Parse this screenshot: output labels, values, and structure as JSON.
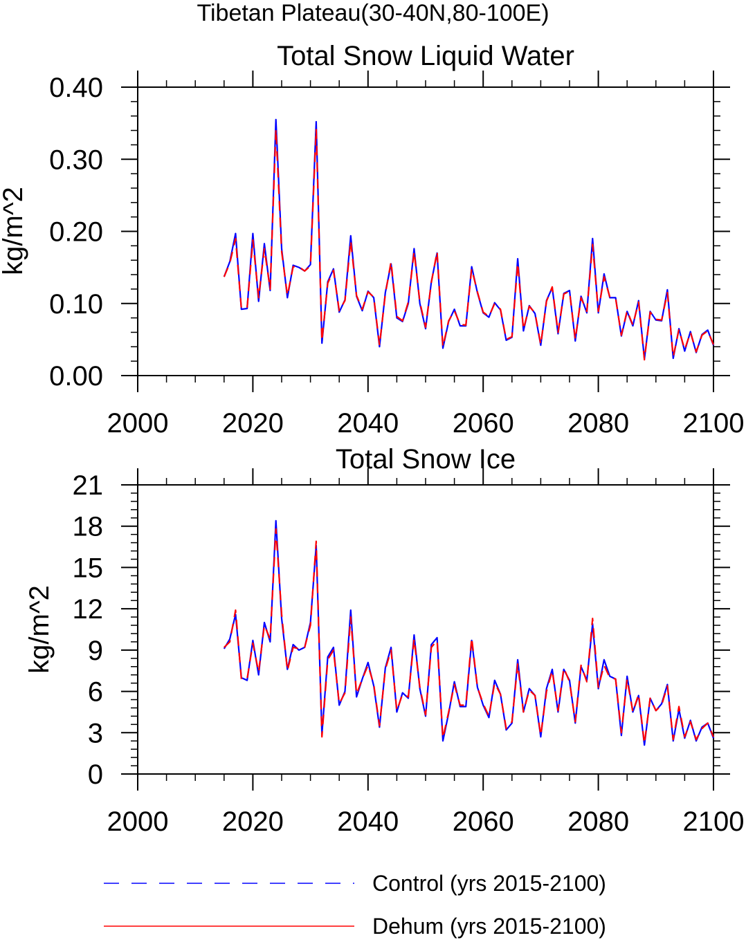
{
  "suptitle": "Tibetan Plateau(30-40N,80-100E)",
  "legend": {
    "control_label": "Control (yrs 2015-2100)",
    "dehum_label": "Dehum (yrs 2015-2100)"
  },
  "colors": {
    "control": "#0000ff",
    "dehum": "#ff0000",
    "axis": "#000000"
  },
  "chart_data": [
    {
      "type": "line",
      "title": "Total Snow Liquid Water",
      "xlabel": "",
      "ylabel": "kg/m^2",
      "xlim": [
        2000,
        2100
      ],
      "ylim": [
        0,
        0.4
      ],
      "xticks": [
        2000,
        2020,
        2040,
        2060,
        2080,
        2100
      ],
      "xtick_labels": [
        "2000",
        "2020",
        "2040",
        "2060",
        "2080",
        "2100"
      ],
      "yticks": [
        0,
        0.1,
        0.2,
        0.3,
        0.4
      ],
      "ytick_labels": [
        "0.00",
        "0.10",
        "0.20",
        "0.30",
        "0.40"
      ],
      "x": [
        2015,
        2016,
        2017,
        2018,
        2019,
        2020,
        2021,
        2022,
        2023,
        2024,
        2025,
        2026,
        2027,
        2028,
        2029,
        2030,
        2031,
        2032,
        2033,
        2034,
        2035,
        2036,
        2037,
        2038,
        2039,
        2040,
        2041,
        2042,
        2043,
        2044,
        2045,
        2046,
        2047,
        2048,
        2049,
        2050,
        2051,
        2052,
        2053,
        2054,
        2055,
        2056,
        2057,
        2058,
        2059,
        2060,
        2061,
        2062,
        2063,
        2064,
        2065,
        2066,
        2067,
        2068,
        2069,
        2070,
        2071,
        2072,
        2073,
        2074,
        2075,
        2076,
        2077,
        2078,
        2079,
        2080,
        2081,
        2082,
        2083,
        2084,
        2085,
        2086,
        2087,
        2088,
        2089,
        2090,
        2091,
        2092,
        2093,
        2094,
        2095,
        2096,
        2097,
        2098,
        2099,
        2100
      ],
      "series": [
        {
          "name": "Control (yrs 2015-2100)",
          "values": [
            0.137,
            0.158,
            0.197,
            0.092,
            0.093,
            0.197,
            0.103,
            0.183,
            0.118,
            0.355,
            0.176,
            0.108,
            0.153,
            0.15,
            0.145,
            0.154,
            0.352,
            0.045,
            0.13,
            0.148,
            0.088,
            0.105,
            0.194,
            0.11,
            0.09,
            0.117,
            0.108,
            0.04,
            0.115,
            0.155,
            0.08,
            0.075,
            0.1,
            0.176,
            0.1,
            0.065,
            0.13,
            0.17,
            0.038,
            0.075,
            0.092,
            0.069,
            0.069,
            0.151,
            0.115,
            0.087,
            0.081,
            0.101,
            0.091,
            0.049,
            0.053,
            0.162,
            0.062,
            0.097,
            0.086,
            0.042,
            0.104,
            0.122,
            0.058,
            0.114,
            0.118,
            0.048,
            0.11,
            0.087,
            0.19,
            0.087,
            0.141,
            0.108,
            0.108,
            0.055,
            0.089,
            0.069,
            0.104,
            0.023,
            0.089,
            0.077,
            0.076,
            0.119,
            0.024,
            0.065,
            0.034,
            0.061,
            0.032,
            0.057,
            0.063,
            0.042
          ]
        },
        {
          "name": "Dehum (yrs 2015-2100)",
          "values": [
            0.137,
            0.156,
            0.19,
            0.093,
            0.094,
            0.188,
            0.108,
            0.176,
            0.12,
            0.342,
            0.172,
            0.111,
            0.151,
            0.151,
            0.145,
            0.152,
            0.342,
            0.048,
            0.128,
            0.146,
            0.09,
            0.104,
            0.187,
            0.111,
            0.092,
            0.116,
            0.109,
            0.042,
            0.113,
            0.158,
            0.082,
            0.076,
            0.102,
            0.172,
            0.102,
            0.067,
            0.129,
            0.172,
            0.04,
            0.076,
            0.09,
            0.071,
            0.07,
            0.148,
            0.116,
            0.088,
            0.082,
            0.1,
            0.092,
            0.05,
            0.054,
            0.156,
            0.064,
            0.096,
            0.087,
            0.043,
            0.103,
            0.123,
            0.06,
            0.113,
            0.117,
            0.05,
            0.108,
            0.089,
            0.182,
            0.089,
            0.137,
            0.109,
            0.107,
            0.056,
            0.09,
            0.07,
            0.102,
            0.022,
            0.088,
            0.078,
            0.077,
            0.115,
            0.026,
            0.064,
            0.036,
            0.06,
            0.033,
            0.056,
            0.062,
            0.043
          ]
        }
      ]
    },
    {
      "type": "line",
      "title": "Total Snow Ice",
      "xlabel": "",
      "ylabel": "kg/m^2",
      "xlim": [
        2000,
        2100
      ],
      "ylim": [
        0,
        21
      ],
      "xticks": [
        2000,
        2020,
        2040,
        2060,
        2080,
        2100
      ],
      "xtick_labels": [
        "2000",
        "2020",
        "2040",
        "2060",
        "2080",
        "2100"
      ],
      "yticks": [
        0,
        3,
        6,
        9,
        12,
        15,
        18,
        21
      ],
      "ytick_labels": [
        "0",
        "3",
        "6",
        "9",
        "12",
        "15",
        "18",
        "21"
      ],
      "x": [
        2015,
        2016,
        2017,
        2018,
        2019,
        2020,
        2021,
        2022,
        2023,
        2024,
        2025,
        2026,
        2027,
        2028,
        2029,
        2030,
        2031,
        2032,
        2033,
        2034,
        2035,
        2036,
        2037,
        2038,
        2039,
        2040,
        2041,
        2042,
        2043,
        2044,
        2045,
        2046,
        2047,
        2048,
        2049,
        2050,
        2051,
        2052,
        2053,
        2054,
        2055,
        2056,
        2057,
        2058,
        2059,
        2060,
        2061,
        2062,
        2063,
        2064,
        2065,
        2066,
        2067,
        2068,
        2069,
        2070,
        2071,
        2072,
        2073,
        2074,
        2075,
        2076,
        2077,
        2078,
        2079,
        2080,
        2081,
        2082,
        2083,
        2084,
        2085,
        2086,
        2087,
        2088,
        2089,
        2090,
        2091,
        2092,
        2093,
        2094,
        2095,
        2096,
        2097,
        2098,
        2099,
        2100
      ],
      "series": [
        {
          "name": "Control (yrs 2015-2100)",
          "values": [
            9.1,
            9.8,
            11.6,
            7.0,
            6.8,
            9.7,
            7.2,
            11.0,
            9.6,
            18.4,
            11.3,
            7.6,
            9.4,
            9.0,
            9.2,
            11.0,
            16.6,
            2.9,
            8.5,
            9.2,
            5.0,
            6.0,
            11.9,
            5.6,
            6.9,
            8.1,
            6.4,
            3.4,
            7.7,
            9.2,
            4.5,
            5.9,
            5.5,
            10.1,
            6.2,
            4.2,
            9.4,
            9.9,
            2.4,
            4.4,
            6.7,
            4.9,
            4.9,
            9.7,
            6.3,
            5.0,
            4.1,
            6.8,
            5.8,
            3.2,
            3.7,
            8.3,
            4.5,
            6.2,
            5.7,
            2.7,
            6.2,
            7.6,
            4.5,
            7.6,
            6.8,
            3.7,
            7.8,
            6.8,
            10.9,
            6.2,
            8.3,
            7.1,
            6.9,
            2.8,
            7.1,
            4.5,
            5.7,
            2.1,
            5.5,
            4.6,
            5.1,
            6.5,
            2.4,
            4.7,
            2.6,
            3.9,
            2.4,
            3.4,
            3.7,
            2.6
          ]
        },
        {
          "name": "Dehum (yrs 2015-2100)",
          "values": [
            9.2,
            9.6,
            11.9,
            6.9,
            6.9,
            9.5,
            7.4,
            10.8,
            9.8,
            17.8,
            11.6,
            7.5,
            9.2,
            9.1,
            9.2,
            10.8,
            16.9,
            2.7,
            8.3,
            9.0,
            5.1,
            5.9,
            11.4,
            5.8,
            6.9,
            7.9,
            6.5,
            3.5,
            7.6,
            9.0,
            4.6,
            5.8,
            5.6,
            9.8,
            6.3,
            4.3,
            9.2,
            9.7,
            2.6,
            4.5,
            6.5,
            5.0,
            5.0,
            9.9,
            6.3,
            5.1,
            4.2,
            6.6,
            5.8,
            3.3,
            3.8,
            8.0,
            4.5,
            6.1,
            5.7,
            2.8,
            6.0,
            7.5,
            4.6,
            7.7,
            6.7,
            3.8,
            7.9,
            6.7,
            11.3,
            6.3,
            7.9,
            7.0,
            6.9,
            3.0,
            6.9,
            4.5,
            5.8,
            2.2,
            5.5,
            4.6,
            5.0,
            6.4,
            2.5,
            4.9,
            2.7,
            3.8,
            2.5,
            3.3,
            3.7,
            2.7
          ]
        }
      ]
    }
  ]
}
